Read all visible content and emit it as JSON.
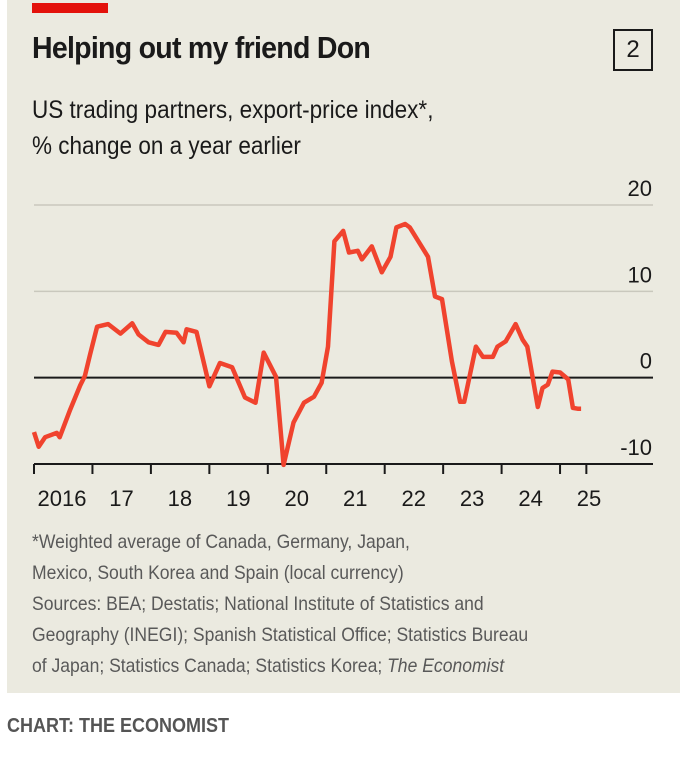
{
  "header": {
    "title": "Helping out my friend Don",
    "chart_number": "2",
    "subtitle_line1": "US trading partners, export-price index*,",
    "subtitle_line2": "% change on a year earlier"
  },
  "colors": {
    "background": "#ebeae0",
    "accent": "#e3120b",
    "line": "#f0432e",
    "gridline": "#c9c8bd",
    "axis": "#1a1a1a"
  },
  "footnotes": {
    "line1": "*Weighted average of Canada, Germany, Japan,",
    "line2": "Mexico, South Korea and Spain (local currency)",
    "line3": "Sources: BEA; Destatis; National Institute of Statistics and",
    "line4": "Geography (INEGI); Spanish Statistical Office; Statistics Bureau",
    "line5_prefix": "of Japan; Statistics Canada; Statistics Korea; ",
    "line5_italic": "The Economist"
  },
  "credit": "CHART: THE ECONOMIST",
  "chart_data": {
    "type": "line",
    "title": "Helping out my friend Don",
    "subtitle": "US trading partners, export-price index*, % change on a year earlier",
    "xlabel": "",
    "ylabel": "% change on a year earlier",
    "xlim": [
      2016.0,
      2025.45
    ],
    "ylim": [
      -10,
      20
    ],
    "yticks": [
      20,
      10,
      0,
      -10
    ],
    "ytick_labels": [
      "20",
      "10",
      "0",
      "-10"
    ],
    "xticks": [
      2016,
      2017,
      2018,
      2019,
      2020,
      2021,
      2022,
      2023,
      2024,
      2025
    ],
    "xtick_labels": [
      "2016",
      "17",
      "18",
      "19",
      "20",
      "21",
      "22",
      "23",
      "24",
      "25"
    ],
    "grid": true,
    "legend": "none",
    "series": [
      {
        "name": "Export-price index, % change on a year earlier",
        "x": [
          2016.0,
          2016.08,
          2016.19,
          2016.39,
          2016.44,
          2016.62,
          2016.79,
          2016.87,
          2016.96,
          2017.08,
          2017.27,
          2017.48,
          2017.68,
          2017.79,
          2017.96,
          2018.13,
          2018.25,
          2018.44,
          2018.56,
          2018.61,
          2018.78,
          2019.0,
          2019.18,
          2019.39,
          2019.61,
          2019.79,
          2019.93,
          2020.14,
          2020.27,
          2020.44,
          2020.62,
          2020.79,
          2020.92,
          2021.03,
          2021.14,
          2021.29,
          2021.39,
          2021.54,
          2021.61,
          2021.78,
          2021.95,
          2022.1,
          2022.2,
          2022.35,
          2022.43,
          2022.74,
          2022.86,
          2022.98,
          2023.15,
          2023.29,
          2023.36,
          2023.56,
          2023.68,
          2023.85,
          2023.93,
          2024.07,
          2024.24,
          2024.36,
          2024.44,
          2024.62,
          2024.7,
          2024.79,
          2024.87,
          2025.0,
          2025.14,
          2025.22,
          2025.3,
          2025.36
        ],
        "values": [
          -6.3,
          -8.0,
          -6.9,
          -6.4,
          -6.9,
          -3.7,
          -0.9,
          0.2,
          2.7,
          5.9,
          6.2,
          5.1,
          6.3,
          5.0,
          4.1,
          3.8,
          5.3,
          5.2,
          4.1,
          5.6,
          5.3,
          -1.0,
          1.7,
          1.2,
          -2.3,
          -2.9,
          2.9,
          0.1,
          -10.1,
          -5.2,
          -2.9,
          -2.2,
          -0.6,
          3.6,
          15.8,
          17.0,
          14.5,
          14.7,
          13.7,
          15.2,
          12.2,
          14.0,
          17.4,
          17.8,
          17.4,
          14.0,
          9.4,
          9.1,
          1.9,
          -2.8,
          -2.8,
          3.6,
          2.4,
          2.4,
          3.6,
          4.2,
          6.2,
          4.4,
          3.6,
          -3.4,
          -1.2,
          -0.8,
          0.7,
          0.6,
          -0.2,
          -3.5,
          -3.6,
          -3.6
        ]
      }
    ]
  }
}
